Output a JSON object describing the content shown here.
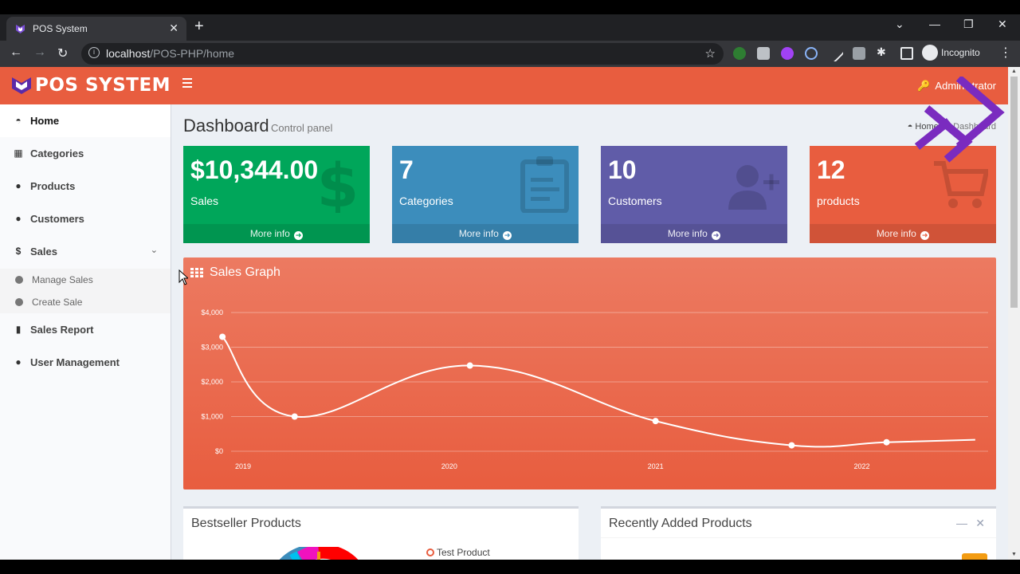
{
  "browser": {
    "tab_title": "POS System",
    "url_host": "localhost",
    "url_path": "/POS-PHP/home",
    "profile": "Incognito"
  },
  "app": {
    "brand": "POS SYSTEM",
    "user": "Administrator",
    "colors": {
      "primary": "#e85d3f",
      "green": "#00a65a",
      "blue": "#3c8dbc",
      "purple": "#605ca8"
    }
  },
  "sidebar": {
    "items": [
      {
        "label": "Home",
        "icon": "dashboard-icon"
      },
      {
        "label": "Categories",
        "icon": "grid-icon"
      },
      {
        "label": "Products",
        "icon": "product-hunt-icon"
      },
      {
        "label": "Customers",
        "icon": "users-icon"
      },
      {
        "label": "Sales",
        "icon": "dollar-icon"
      },
      {
        "label": "Sales Report",
        "icon": "file-icon"
      },
      {
        "label": "User Management",
        "icon": "user-icon"
      }
    ],
    "sales_sub": [
      {
        "label": "Manage Sales"
      },
      {
        "label": "Create Sale"
      }
    ]
  },
  "header": {
    "title": "Dashboard",
    "subtitle": "Control panel",
    "breadcrumb_home": "Home",
    "breadcrumb_current": "Dashboard"
  },
  "stats": [
    {
      "value": "$10,344.00",
      "label": "Sales",
      "more": "More info"
    },
    {
      "value": "7",
      "label": "Categories",
      "more": "More info"
    },
    {
      "value": "10",
      "label": "Customers",
      "more": "More info"
    },
    {
      "value": "12",
      "label": "products",
      "more": "More info"
    }
  ],
  "sales_graph": {
    "title": "Sales Graph"
  },
  "chart_data": {
    "type": "line",
    "x_ticks": [
      "2019",
      "2020",
      "2021",
      "2022"
    ],
    "y_ticks": [
      "$0",
      "$1,000",
      "$2,000",
      "$3,000",
      "$4,000"
    ],
    "ylim": [
      0,
      4000
    ],
    "x_range": [
      2019,
      2022.4
    ],
    "points": [
      {
        "x": 2018.9,
        "y": 3300
      },
      {
        "x": 2019.25,
        "y": 1000
      },
      {
        "x": 2020.1,
        "y": 2470
      },
      {
        "x": 2021.0,
        "y": 870
      },
      {
        "x": 2021.66,
        "y": 170
      },
      {
        "x": 2022.12,
        "y": 260
      },
      {
        "x": 2022.55,
        "y": 330
      }
    ],
    "grid": true,
    "line_color": "#ffffff"
  },
  "panels": {
    "bestseller_title": "Bestseller Products",
    "bestseller_legend": "Test Product",
    "recent_title": "Recently Added Products"
  }
}
